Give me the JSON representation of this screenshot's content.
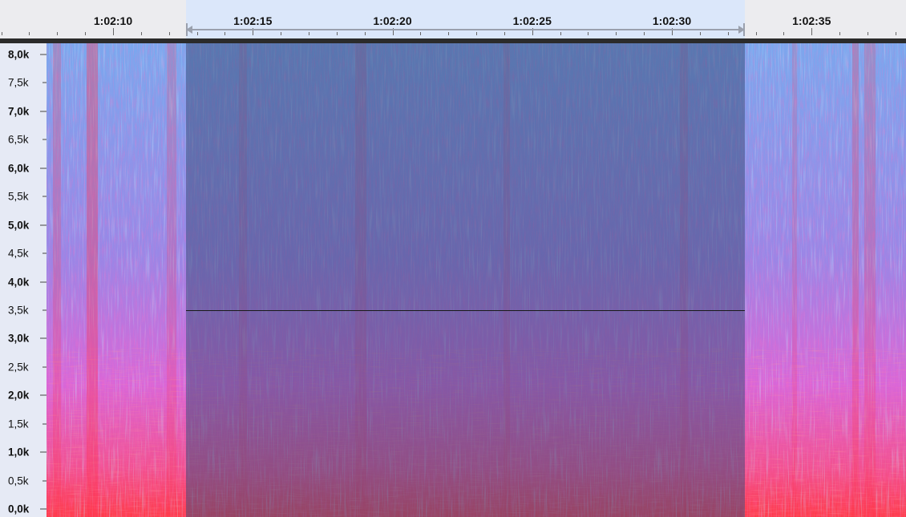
{
  "timeline": {
    "labels": [
      "1:02:10",
      "1:02:15",
      "1:02:20",
      "1:02:25",
      "1:02:30",
      "1:02:35"
    ],
    "selection": {
      "start": "1:02:13",
      "end": "1:02:33"
    }
  },
  "frequency_axis": {
    "labels": [
      "8,0k",
      "7,5k",
      "7,0k",
      "6,5k",
      "6,0k",
      "5,5k",
      "5,0k",
      "4,5k",
      "4,0k",
      "3,5k",
      "3,0k",
      "2,5k",
      "2,0k",
      "1,5k",
      "1,0k",
      "0,5k",
      "0,0k"
    ],
    "major": [
      "8,0k",
      "7,0k",
      "6,0k",
      "5,0k",
      "4,0k",
      "3,0k",
      "2,0k",
      "1,0k",
      "0,0k"
    ]
  },
  "colors": {
    "spectrogram_low": "#6fa3ee",
    "spectrogram_mid": "#e95fd0",
    "spectrogram_high": "#ff3b4a",
    "selection_overlay": "#3a4a78"
  },
  "cursor_frequency": "3,5k"
}
